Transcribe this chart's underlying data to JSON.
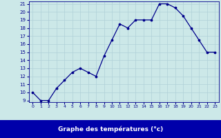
{
  "x": [
    0,
    1,
    2,
    3,
    4,
    5,
    6,
    7,
    8,
    9,
    10,
    11,
    12,
    13,
    14,
    15,
    16,
    17,
    18,
    19,
    20,
    21,
    22,
    23
  ],
  "y": [
    10.0,
    9.0,
    9.0,
    10.5,
    11.5,
    12.5,
    13.0,
    12.5,
    12.0,
    14.5,
    16.5,
    18.5,
    18.0,
    19.0,
    19.0,
    19.0,
    21.0,
    21.0,
    20.5,
    19.5,
    18.0,
    16.5,
    15.0,
    15.0
  ],
  "xlabel": "Graphe des températures (°c)",
  "ylim_min": 9,
  "ylim_max": 21,
  "xlim_min": 0,
  "xlim_max": 23,
  "yticks": [
    9,
    10,
    11,
    12,
    13,
    14,
    15,
    16,
    17,
    18,
    19,
    20,
    21
  ],
  "xticks": [
    0,
    1,
    2,
    3,
    4,
    5,
    6,
    7,
    8,
    9,
    10,
    11,
    12,
    13,
    14,
    15,
    16,
    17,
    18,
    19,
    20,
    21,
    22,
    23
  ],
  "line_color": "#00008b",
  "marker_color": "#00008b",
  "bg_color": "#cce8e8",
  "grid_color": "#b0d0d8",
  "xlabel_color": "#00008b",
  "tick_label_color": "#00008b",
  "bottom_bar_color": "#0000aa",
  "bottom_bar_text_color": "#ffffff"
}
